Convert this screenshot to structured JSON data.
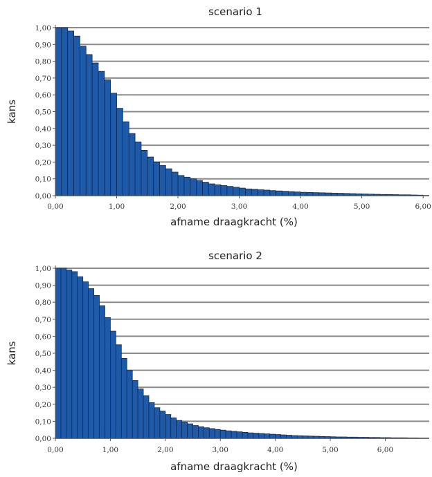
{
  "chart_data": [
    {
      "type": "bar",
      "title": "scenario 1",
      "xlabel": "afname draagkracht (%)",
      "ylabel": "kans",
      "xlim": [
        0,
        6.1
      ],
      "ylim": [
        0,
        1.0
      ],
      "x_ticks": [
        "0,00",
        "1,00",
        "2,00",
        "3,00",
        "4,00",
        "5,00",
        "6,00"
      ],
      "y_ticks": [
        "0,00",
        "0,10",
        "0,20",
        "0,30",
        "0,40",
        "0,50",
        "0,60",
        "0,70",
        "0,80",
        "0,90",
        "1,00"
      ],
      "grid": "horizontal",
      "bar_color": "#1f5aa8",
      "bin_width": 0.1,
      "x": [
        0.1,
        0.2,
        0.3,
        0.4,
        0.5,
        0.6,
        0.7,
        0.8,
        0.9,
        1.0,
        1.1,
        1.2,
        1.3,
        1.4,
        1.5,
        1.6,
        1.7,
        1.8,
        1.9,
        2.0,
        2.1,
        2.2,
        2.3,
        2.4,
        2.5,
        2.6,
        2.7,
        2.8,
        2.9,
        3.0,
        3.1,
        3.2,
        3.3,
        3.4,
        3.5,
        3.6,
        3.7,
        3.8,
        3.9,
        4.0,
        4.1,
        4.2,
        4.3,
        4.4,
        4.5,
        4.6,
        4.7,
        4.8,
        4.9,
        5.0,
        5.1,
        5.2,
        5.3,
        5.4,
        5.5,
        5.6,
        5.7,
        5.8,
        5.9,
        6.0
      ],
      "values": [
        1.0,
        1.0,
        0.98,
        0.95,
        0.89,
        0.84,
        0.79,
        0.74,
        0.69,
        0.61,
        0.52,
        0.44,
        0.37,
        0.32,
        0.27,
        0.23,
        0.2,
        0.18,
        0.16,
        0.14,
        0.12,
        0.11,
        0.1,
        0.09,
        0.08,
        0.07,
        0.065,
        0.06,
        0.055,
        0.05,
        0.045,
        0.04,
        0.038,
        0.035,
        0.033,
        0.03,
        0.028,
        0.026,
        0.024,
        0.022,
        0.02,
        0.019,
        0.018,
        0.017,
        0.016,
        0.015,
        0.014,
        0.013,
        0.012,
        0.011,
        0.01,
        0.009,
        0.008,
        0.007,
        0.007,
        0.006,
        0.005,
        0.005,
        0.004,
        0.003
      ]
    },
    {
      "type": "bar",
      "title": "scenario 2",
      "xlabel": "afname draagkracht (%)",
      "ylabel": "kans",
      "xlim": [
        0,
        6.8
      ],
      "ylim": [
        0,
        1.0
      ],
      "x_ticks": [
        "0,00",
        "1,00",
        "2,00",
        "3,00",
        "4,00",
        "5,00",
        "6,00"
      ],
      "y_ticks": [
        "0,00",
        "0,10",
        "0,20",
        "0,30",
        "0,40",
        "0,50",
        "0,60",
        "0,70",
        "0,80",
        "0,90",
        "1,00"
      ],
      "grid": "horizontal",
      "bar_color": "#1f5aa8",
      "bin_width": 0.1,
      "x": [
        0.1,
        0.2,
        0.3,
        0.4,
        0.5,
        0.6,
        0.7,
        0.8,
        0.9,
        1.0,
        1.1,
        1.2,
        1.3,
        1.4,
        1.5,
        1.6,
        1.7,
        1.8,
        1.9,
        2.0,
        2.1,
        2.2,
        2.3,
        2.4,
        2.5,
        2.6,
        2.7,
        2.8,
        2.9,
        3.0,
        3.1,
        3.2,
        3.3,
        3.4,
        3.5,
        3.6,
        3.7,
        3.8,
        3.9,
        4.0,
        4.1,
        4.2,
        4.3,
        4.4,
        4.5,
        4.6,
        4.7,
        4.8,
        4.9,
        5.0,
        5.1,
        5.2,
        5.3,
        5.4,
        5.5,
        5.6,
        5.7,
        5.8,
        5.9,
        6.0,
        6.1,
        6.2,
        6.3,
        6.4,
        6.5,
        6.6
      ],
      "values": [
        1.0,
        1.0,
        0.99,
        0.98,
        0.95,
        0.92,
        0.88,
        0.84,
        0.78,
        0.71,
        0.63,
        0.55,
        0.47,
        0.4,
        0.34,
        0.29,
        0.25,
        0.21,
        0.18,
        0.16,
        0.14,
        0.12,
        0.105,
        0.095,
        0.085,
        0.075,
        0.068,
        0.062,
        0.057,
        0.052,
        0.048,
        0.044,
        0.041,
        0.038,
        0.035,
        0.032,
        0.03,
        0.028,
        0.026,
        0.024,
        0.022,
        0.02,
        0.018,
        0.016,
        0.015,
        0.014,
        0.013,
        0.012,
        0.011,
        0.01,
        0.009,
        0.008,
        0.008,
        0.007,
        0.007,
        0.006,
        0.006,
        0.005,
        0.005,
        0.004,
        0.004,
        0.003,
        0.003,
        0.003,
        0.002,
        0.002
      ]
    }
  ]
}
